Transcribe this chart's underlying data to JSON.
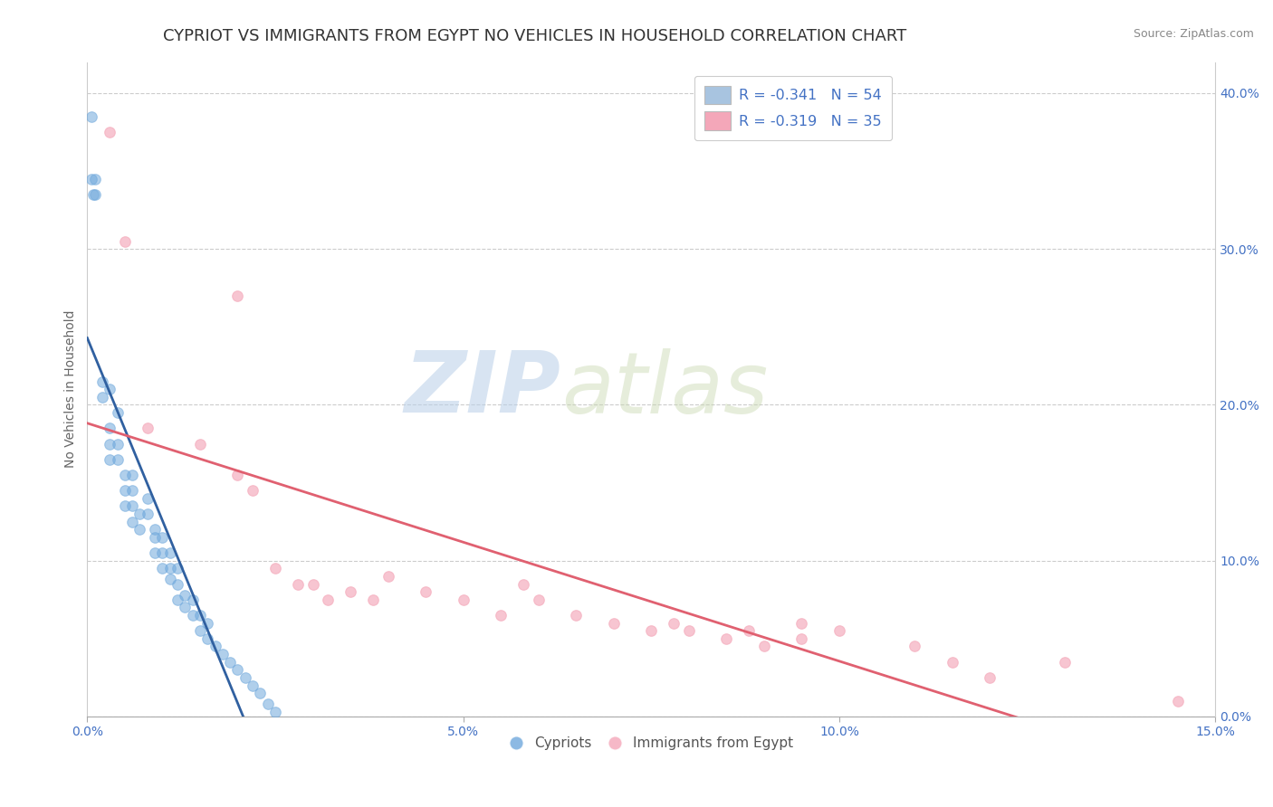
{
  "title": "CYPRIOT VS IMMIGRANTS FROM EGYPT NO VEHICLES IN HOUSEHOLD CORRELATION CHART",
  "source": "Source: ZipAtlas.com",
  "ylabel": "No Vehicles in Household",
  "xlim": [
    0.0,
    0.15
  ],
  "ylim": [
    0.0,
    0.42
  ],
  "series1_color": "#6fa8dc",
  "series2_color": "#f4a7b9",
  "series1_line_color": "#3060a0",
  "series2_line_color": "#e06070",
  "watermark_text": "ZIP",
  "watermark_text2": "atlas",
  "background_color": "#ffffff",
  "grid_color": "#cccccc",
  "title_color": "#333333",
  "title_fontsize": 13,
  "axis_label_fontsize": 10,
  "tick_fontsize": 10,
  "marker_size": 70,
  "blue_scatter": [
    [
      0.0005,
      0.385
    ],
    [
      0.0005,
      0.345
    ],
    [
      0.0008,
      0.335
    ],
    [
      0.001,
      0.345
    ],
    [
      0.001,
      0.335
    ],
    [
      0.002,
      0.215
    ],
    [
      0.002,
      0.205
    ],
    [
      0.003,
      0.185
    ],
    [
      0.003,
      0.21
    ],
    [
      0.004,
      0.195
    ],
    [
      0.003,
      0.175
    ],
    [
      0.003,
      0.165
    ],
    [
      0.004,
      0.175
    ],
    [
      0.004,
      0.165
    ],
    [
      0.005,
      0.155
    ],
    [
      0.005,
      0.145
    ],
    [
      0.005,
      0.135
    ],
    [
      0.006,
      0.155
    ],
    [
      0.006,
      0.145
    ],
    [
      0.006,
      0.135
    ],
    [
      0.006,
      0.125
    ],
    [
      0.007,
      0.13
    ],
    [
      0.007,
      0.12
    ],
    [
      0.008,
      0.14
    ],
    [
      0.008,
      0.13
    ],
    [
      0.009,
      0.12
    ],
    [
      0.009,
      0.115
    ],
    [
      0.009,
      0.105
    ],
    [
      0.01,
      0.115
    ],
    [
      0.01,
      0.105
    ],
    [
      0.01,
      0.095
    ],
    [
      0.011,
      0.105
    ],
    [
      0.011,
      0.095
    ],
    [
      0.011,
      0.088
    ],
    [
      0.012,
      0.095
    ],
    [
      0.012,
      0.085
    ],
    [
      0.012,
      0.075
    ],
    [
      0.013,
      0.078
    ],
    [
      0.013,
      0.07
    ],
    [
      0.014,
      0.075
    ],
    [
      0.014,
      0.065
    ],
    [
      0.015,
      0.065
    ],
    [
      0.015,
      0.055
    ],
    [
      0.016,
      0.06
    ],
    [
      0.016,
      0.05
    ],
    [
      0.017,
      0.045
    ],
    [
      0.018,
      0.04
    ],
    [
      0.019,
      0.035
    ],
    [
      0.02,
      0.03
    ],
    [
      0.021,
      0.025
    ],
    [
      0.022,
      0.02
    ],
    [
      0.023,
      0.015
    ],
    [
      0.024,
      0.008
    ],
    [
      0.025,
      0.003
    ]
  ],
  "pink_scatter": [
    [
      0.003,
      0.375
    ],
    [
      0.02,
      0.27
    ],
    [
      0.005,
      0.305
    ],
    [
      0.008,
      0.185
    ],
    [
      0.015,
      0.175
    ],
    [
      0.02,
      0.155
    ],
    [
      0.022,
      0.145
    ],
    [
      0.025,
      0.095
    ],
    [
      0.028,
      0.085
    ],
    [
      0.03,
      0.085
    ],
    [
      0.032,
      0.075
    ],
    [
      0.035,
      0.08
    ],
    [
      0.038,
      0.075
    ],
    [
      0.04,
      0.09
    ],
    [
      0.045,
      0.08
    ],
    [
      0.05,
      0.075
    ],
    [
      0.055,
      0.065
    ],
    [
      0.058,
      0.085
    ],
    [
      0.06,
      0.075
    ],
    [
      0.065,
      0.065
    ],
    [
      0.07,
      0.06
    ],
    [
      0.075,
      0.055
    ],
    [
      0.078,
      0.06
    ],
    [
      0.08,
      0.055
    ],
    [
      0.085,
      0.05
    ],
    [
      0.088,
      0.055
    ],
    [
      0.09,
      0.045
    ],
    [
      0.095,
      0.06
    ],
    [
      0.095,
      0.05
    ],
    [
      0.1,
      0.055
    ],
    [
      0.11,
      0.045
    ],
    [
      0.115,
      0.035
    ],
    [
      0.12,
      0.025
    ],
    [
      0.13,
      0.035
    ],
    [
      0.145,
      0.01
    ]
  ],
  "legend_blue_label": "R = -0.341   N = 54",
  "legend_pink_label": "R = -0.319   N = 35",
  "legend_blue_color": "#a8c4e0",
  "legend_pink_color": "#f4a7b9",
  "legend_text_color": "#4472c4",
  "tick_color": "#4472c4",
  "ylabel_color": "#666666"
}
